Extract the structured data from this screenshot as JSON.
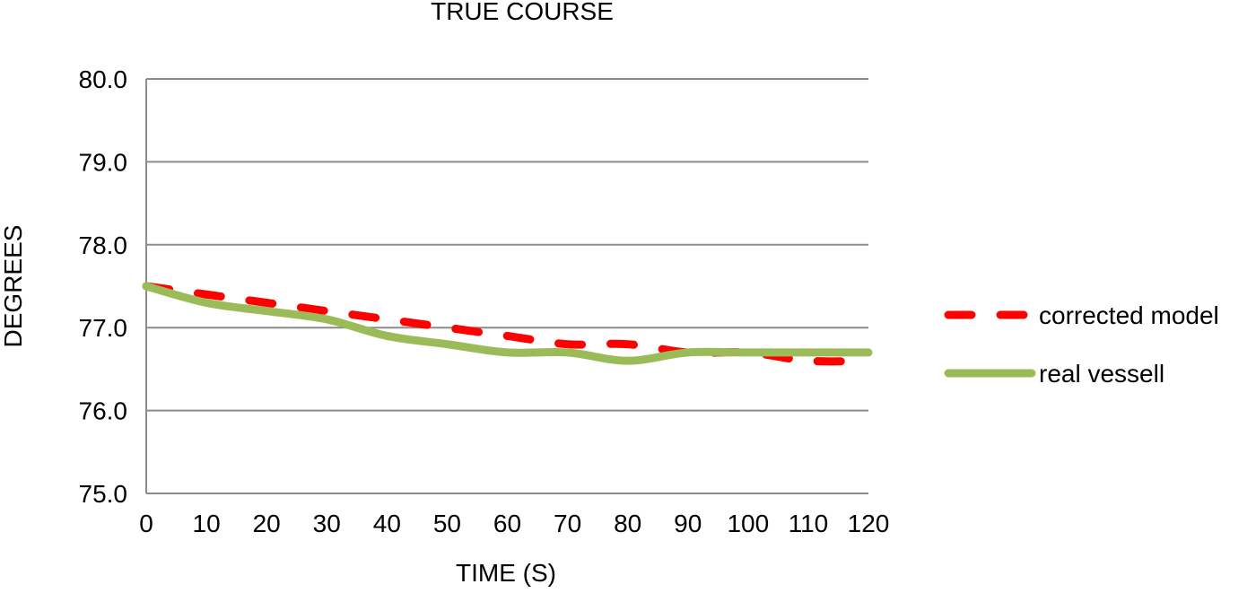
{
  "chart_data": {
    "type": "line",
    "title": "TRUE COURSE",
    "xlabel": "TIME (S)",
    "ylabel": "DEGREES",
    "x": [
      0,
      10,
      20,
      30,
      40,
      50,
      60,
      70,
      80,
      90,
      100,
      110,
      120
    ],
    "x_tick_labels": [
      "0",
      "10",
      "20",
      "30",
      "40",
      "50",
      "60",
      "70",
      "80",
      "90",
      "100",
      "110",
      "120"
    ],
    "y_tick_labels": [
      "75.0",
      "76.0",
      "77.0",
      "78.0",
      "79.0",
      "80.0"
    ],
    "ylim": [
      75.0,
      80.0
    ],
    "xlim": [
      0,
      120
    ],
    "grid": "horizontal",
    "legend_position": "right",
    "series": [
      {
        "name": "corrected model",
        "style": "dashed",
        "color": "#ff0000",
        "values": [
          77.5,
          77.4,
          77.3,
          77.2,
          77.1,
          77.0,
          76.9,
          76.8,
          76.8,
          76.7,
          76.7,
          76.6,
          76.6
        ]
      },
      {
        "name": "real vessell",
        "style": "solid",
        "color": "#9bbb59",
        "values": [
          77.5,
          77.3,
          77.2,
          77.1,
          76.9,
          76.8,
          76.7,
          76.7,
          76.6,
          76.7,
          76.7,
          76.7,
          76.7
        ]
      }
    ]
  }
}
